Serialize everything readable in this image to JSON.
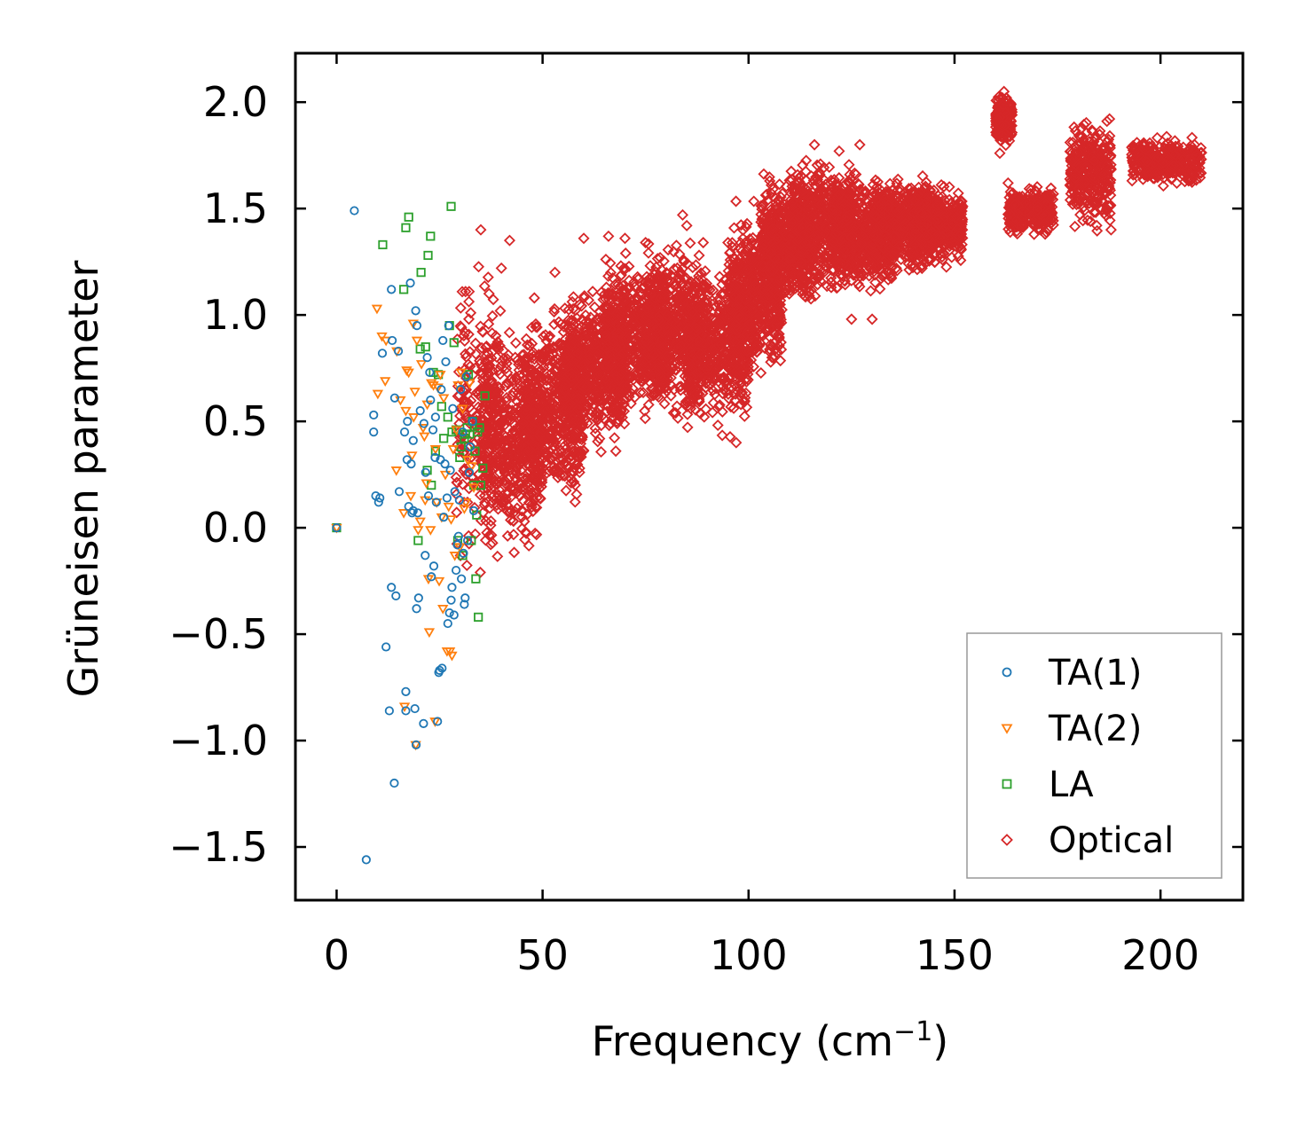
{
  "chart_data": {
    "type": "scatter",
    "title": "",
    "xlabel": "Frequency (cm",
    "xlabel_exponent": "−1",
    "xlabel_suffix": ")",
    "ylabel": "Grüneisen parameter",
    "xlim": [
      -10,
      220
    ],
    "ylim": [
      -1.75,
      2.23
    ],
    "xticks": [
      0,
      50,
      100,
      150,
      200
    ],
    "xtick_labels": [
      "0",
      "50",
      "100",
      "150",
      "200"
    ],
    "yticks": [
      -1.5,
      -1.0,
      -0.5,
      0.0,
      0.5,
      1.0,
      1.5,
      2.0
    ],
    "ytick_labels": [
      "−1.5",
      "−1.0",
      "−0.5",
      "0.0",
      "0.5",
      "1.0",
      "1.5",
      "2.0"
    ],
    "grid": false,
    "legend_position": "lower-right",
    "series": [
      {
        "name": "TA(1)",
        "marker": "circle",
        "color": "#1f77b4",
        "points": [
          [
            0,
            0
          ],
          [
            4.3,
            1.49
          ],
          [
            7.2,
            -1.56
          ],
          [
            9.0,
            0.53
          ],
          [
            9.0,
            0.45
          ],
          [
            9.5,
            0.15
          ],
          [
            10.2,
            0.12
          ],
          [
            10.5,
            0.14
          ],
          [
            11.1,
            0.82
          ],
          [
            12.0,
            -0.56
          ],
          [
            12.8,
            -0.86
          ],
          [
            13.3,
            -0.28
          ],
          [
            13.3,
            1.12
          ],
          [
            13.5,
            0.88
          ],
          [
            14.0,
            -1.2
          ],
          [
            14.1,
            0.61
          ],
          [
            14.4,
            -0.32
          ],
          [
            15.0,
            0.83
          ],
          [
            15.2,
            0.17
          ],
          [
            16.5,
            0.45
          ],
          [
            16.8,
            -0.77
          ],
          [
            16.8,
            -0.86
          ],
          [
            17.1,
            0.32
          ],
          [
            17.2,
            0.5
          ],
          [
            17.5,
            0.1
          ],
          [
            17.9,
            1.15
          ],
          [
            18.1,
            0.3
          ],
          [
            18.3,
            0.07
          ],
          [
            18.6,
            0.41
          ],
          [
            18.6,
            0.08
          ],
          [
            19.0,
            -0.85
          ],
          [
            19.2,
            1.02
          ],
          [
            19.3,
            -1.02
          ],
          [
            19.4,
            -0.38
          ],
          [
            19.5,
            0.95
          ],
          [
            19.7,
            0.07
          ],
          [
            19.9,
            -0.33
          ],
          [
            20.3,
            0.55
          ],
          [
            21.1,
            -0.92
          ],
          [
            21.2,
            0.49
          ],
          [
            21.5,
            -0.13
          ],
          [
            21.6,
            0.26
          ],
          [
            22.0,
            0.8
          ],
          [
            22.3,
            0.15
          ],
          [
            22.6,
            0.73
          ],
          [
            22.8,
            0.6
          ],
          [
            23.0,
            -0.23
          ],
          [
            23.4,
            0.46
          ],
          [
            23.6,
            -0.18
          ],
          [
            23.9,
            0.33
          ],
          [
            24.0,
            0.52
          ],
          [
            24.2,
            0.12
          ],
          [
            24.5,
            -0.91
          ],
          [
            24.8,
            -0.68
          ],
          [
            25.0,
            -0.67
          ],
          [
            25.2,
            0.32
          ],
          [
            25.4,
            0.65
          ],
          [
            25.6,
            -0.66
          ],
          [
            25.8,
            0.88
          ],
          [
            26.0,
            0.05
          ],
          [
            26.3,
            0.3
          ],
          [
            26.5,
            0.78
          ],
          [
            26.8,
            0.14
          ],
          [
            27.0,
            -0.45
          ],
          [
            27.2,
            0.95
          ],
          [
            27.4,
            -0.4
          ],
          [
            27.6,
            0.27
          ],
          [
            27.8,
            -0.34
          ],
          [
            28.0,
            -0.28
          ],
          [
            28.2,
            0.56
          ],
          [
            28.5,
            -0.41
          ],
          [
            28.7,
            0.17
          ],
          [
            29.0,
            -0.2
          ],
          [
            29.3,
            -0.08
          ],
          [
            29.6,
            -0.04
          ],
          [
            29.8,
            0.13
          ],
          [
            30.1,
            0.65
          ],
          [
            30.3,
            -0.24
          ],
          [
            30.6,
            0.45
          ],
          [
            30.8,
            -0.12
          ],
          [
            31.0,
            -0.36
          ],
          [
            31.2,
            -0.33
          ],
          [
            31.5,
            0.71
          ],
          [
            31.8,
            -0.06
          ],
          [
            32.2,
            0.26
          ],
          [
            32.4,
            0.38
          ],
          [
            33.0,
            0.5
          ],
          [
            33.3,
            0.08
          ]
        ]
      },
      {
        "name": "TA(2)",
        "marker": "triangle-down",
        "color": "#ff7f0e",
        "points": [
          [
            0,
            0
          ],
          [
            9.8,
            1.03
          ],
          [
            10.0,
            0.63
          ],
          [
            11.0,
            0.9
          ],
          [
            11.8,
            0.69
          ],
          [
            12.0,
            0.88
          ],
          [
            14.5,
            0.27
          ],
          [
            14.6,
            0.83
          ],
          [
            15.5,
            0.6
          ],
          [
            16.3,
            0.07
          ],
          [
            16.5,
            -0.84
          ],
          [
            16.8,
            0.55
          ],
          [
            17.0,
            0.74
          ],
          [
            17.5,
            0.73
          ],
          [
            18.0,
            0.15
          ],
          [
            18.3,
            0.34
          ],
          [
            18.6,
            0.96
          ],
          [
            18.7,
            0.52
          ],
          [
            19.0,
            0.64
          ],
          [
            19.2,
            -1.02
          ],
          [
            19.5,
            0.88
          ],
          [
            19.8,
            -0.01
          ],
          [
            20.3,
            0.03
          ],
          [
            20.6,
            0.77
          ],
          [
            21.0,
            0.47
          ],
          [
            21.3,
            0.43
          ],
          [
            21.5,
            0.13
          ],
          [
            21.8,
            0.21
          ],
          [
            22.0,
            0.58
          ],
          [
            22.3,
            -0.24
          ],
          [
            22.5,
            -0.49
          ],
          [
            22.8,
            -0.01
          ],
          [
            23.0,
            0.68
          ],
          [
            23.5,
            0.67
          ],
          [
            23.9,
            -0.91
          ],
          [
            24.0,
            0.37
          ],
          [
            24.3,
            0.12
          ],
          [
            24.6,
            0.66
          ],
          [
            24.9,
            -0.25
          ],
          [
            25.2,
            0.72
          ],
          [
            25.5,
            0.05
          ],
          [
            25.8,
            -0.38
          ],
          [
            26.0,
            0.61
          ],
          [
            26.4,
            0.25
          ],
          [
            26.8,
            -0.58
          ],
          [
            27.2,
            0.1
          ],
          [
            27.5,
            -0.58
          ],
          [
            27.8,
            0.04
          ],
          [
            28.0,
            -0.6
          ],
          [
            28.3,
            0.37
          ],
          [
            28.7,
            -0.13
          ],
          [
            29.1,
            0.46
          ],
          [
            29.5,
            0.67
          ],
          [
            29.9,
            -0.09
          ],
          [
            30.2,
            0.73
          ],
          [
            30.6,
            0.56
          ],
          [
            31.0,
            0.09
          ],
          [
            31.4,
            0.12
          ],
          [
            31.8,
            0.32
          ],
          [
            32.3,
            0.68
          ],
          [
            32.8,
            0.29
          ],
          [
            33.3,
            0.19
          ]
        ]
      },
      {
        "name": "LA",
        "marker": "square",
        "color": "#2ca02c",
        "points": [
          [
            0,
            0
          ],
          [
            11.2,
            1.33
          ],
          [
            16.8,
            1.41
          ],
          [
            17.5,
            1.46
          ],
          [
            16.3,
            1.12
          ],
          [
            20.5,
            1.2
          ],
          [
            22.2,
            1.28
          ],
          [
            22.8,
            1.37
          ],
          [
            20.3,
            0.84
          ],
          [
            21.6,
            0.85
          ],
          [
            22.0,
            0.27
          ],
          [
            23.0,
            0.2
          ],
          [
            23.5,
            0.73
          ],
          [
            24.0,
            0.36
          ],
          [
            19.8,
            -0.06
          ],
          [
            24.7,
            0.72
          ],
          [
            25.5,
            0.57
          ],
          [
            26.0,
            0.42
          ],
          [
            27.0,
            0.52
          ],
          [
            27.4,
            0.95
          ],
          [
            27.8,
            1.51
          ],
          [
            28.0,
            0.45
          ],
          [
            28.5,
            0.87
          ],
          [
            29.0,
            0.46
          ],
          [
            29.4,
            -0.06
          ],
          [
            29.9,
            0.33
          ],
          [
            30.2,
            0.38
          ],
          [
            30.6,
            -0.13
          ],
          [
            31.0,
            0.42
          ],
          [
            31.3,
            0.44
          ],
          [
            31.7,
            0.47
          ],
          [
            32.0,
            0.72
          ],
          [
            32.3,
            0.44
          ],
          [
            32.7,
            -0.06
          ],
          [
            33.0,
            0.5
          ],
          [
            33.3,
            0.2
          ],
          [
            33.6,
            0.36
          ],
          [
            33.8,
            -0.24
          ],
          [
            34.0,
            0.06
          ],
          [
            34.2,
            0.45
          ],
          [
            34.4,
            -0.42
          ],
          [
            34.7,
            0.47
          ],
          [
            35.0,
            0.2
          ],
          [
            35.5,
            0.28
          ],
          [
            36.0,
            0.62
          ]
        ]
      },
      {
        "name": "Optical",
        "marker": "diamond",
        "color": "#d62728",
        "clusters": [
          {
            "x": [
              29,
              40
            ],
            "y": [
              -0.35,
              1.4
            ],
            "n": 220
          },
          {
            "x": [
              35,
              50
            ],
            "y": [
              -0.2,
              1.0
            ],
            "n": 520
          },
          {
            "x": [
              45,
              60
            ],
            "y": [
              0.0,
              1.1
            ],
            "n": 560
          },
          {
            "x": [
              55,
              70
            ],
            "y": [
              0.3,
              1.2
            ],
            "n": 560
          },
          {
            "x": [
              65,
              80
            ],
            "y": [
              0.45,
              1.35
            ],
            "n": 560
          },
          {
            "x": [
              75,
              90
            ],
            "y": [
              0.45,
              1.4
            ],
            "n": 560
          },
          {
            "x": [
              85,
              100
            ],
            "y": [
              0.4,
              1.3
            ],
            "n": 560
          },
          {
            "x": [
              95,
              108
            ],
            "y": [
              0.65,
              1.55
            ],
            "n": 560
          },
          {
            "x": [
              103,
              115
            ],
            "y": [
              0.95,
              1.7
            ],
            "n": 560
          },
          {
            "x": [
              110,
              125
            ],
            "y": [
              1.05,
              1.8
            ],
            "n": 560
          },
          {
            "x": [
              120,
              135
            ],
            "y": [
              1.05,
              1.7
            ],
            "n": 560
          },
          {
            "x": [
              130,
              145
            ],
            "y": [
              1.15,
              1.7
            ],
            "n": 520
          },
          {
            "x": [
              140,
              152
            ],
            "y": [
              1.2,
              1.65
            ],
            "n": 440
          },
          {
            "x": [
              160,
              164
            ],
            "y": [
              1.78,
              2.06
            ],
            "n": 200
          },
          {
            "x": [
              163,
              167
            ],
            "y": [
              1.35,
              1.62
            ],
            "n": 140
          },
          {
            "x": [
              168,
              174
            ],
            "y": [
              1.35,
              1.62
            ],
            "n": 160
          },
          {
            "x": [
              178,
              188
            ],
            "y": [
              1.35,
              1.99
            ],
            "n": 320
          },
          {
            "x": [
              193,
              210
            ],
            "y": [
              1.58,
              1.86
            ],
            "n": 340
          }
        ],
        "points": [
          [
            37,
            1.1
          ],
          [
            40,
            1.22
          ],
          [
            35,
            1.4
          ],
          [
            42,
            1.35
          ],
          [
            53,
            1.2
          ],
          [
            48,
            1.08
          ],
          [
            60,
            1.36
          ],
          [
            66,
            1.37
          ],
          [
            70,
            1.36
          ],
          [
            75,
            1.34
          ],
          [
            84,
            1.47
          ],
          [
            85,
            1.42
          ],
          [
            88,
            1.28
          ],
          [
            89,
            1.34
          ],
          [
            95,
            1.34
          ],
          [
            97,
            0.4
          ],
          [
            101,
            1.02
          ],
          [
            125,
            0.98
          ],
          [
            130,
            0.98
          ],
          [
            127,
            1.8
          ],
          [
            125,
            1.59
          ],
          [
            116,
            1.8
          ],
          [
            122,
            1.77
          ],
          [
            161,
            1.76
          ],
          [
            162,
            2.05
          ],
          [
            163,
            1.62
          ],
          [
            172,
            1.38
          ],
          [
            188,
            1.4
          ],
          [
            183,
            1.44
          ],
          [
            187,
            1.91
          ]
        ]
      }
    ]
  }
}
